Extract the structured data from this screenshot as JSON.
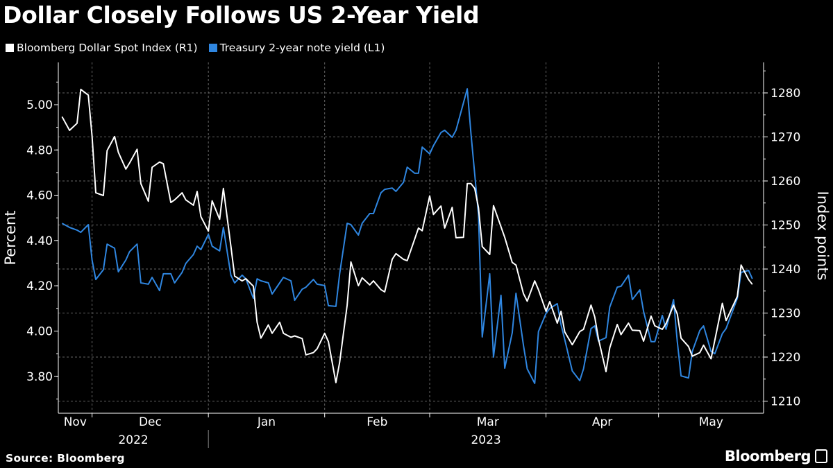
{
  "chart_data": {
    "type": "line",
    "title": "Dollar Closely Follows US 2-Year Yield",
    "source": "Source: Bloomberg",
    "brand": "Bloomberg",
    "y_left": {
      "label": "Percent",
      "range": [
        3.65,
        5.15
      ],
      "ticks": [
        "5.00",
        "4.80",
        "4.60",
        "4.40",
        "4.20",
        "4.00",
        "3.80"
      ],
      "tick_values": [
        5.0,
        4.8,
        4.6,
        4.4,
        4.2,
        4.0,
        3.8
      ]
    },
    "y_right": {
      "label": "Index points",
      "range": [
        1206,
        1287
      ],
      "ticks": [
        "1280",
        "1270",
        "1260",
        "1250",
        "1240",
        "1230",
        "1220",
        "1210"
      ],
      "tick_values": [
        1280,
        1270,
        1260,
        1250,
        1240,
        1230,
        1220,
        1210
      ]
    },
    "x": {
      "range": [
        "2022-11-22",
        "2023-05-29"
      ],
      "months": [
        {
          "label": "Nov",
          "start": "2022-11-22"
        },
        {
          "label": "Dec",
          "start": "2022-12-01"
        },
        {
          "label": "Jan",
          "start": "2023-01-01"
        },
        {
          "label": "Feb",
          "start": "2023-02-01"
        },
        {
          "label": "Mar",
          "start": "2023-03-01"
        },
        {
          "label": "Apr",
          "start": "2023-04-01"
        },
        {
          "label": "May",
          "start": "2023-05-01"
        }
      ],
      "years": [
        {
          "label": "2022",
          "start": "2022-11-22",
          "end": "2023-01-01"
        },
        {
          "label": "2023",
          "start": "2023-01-01",
          "end": "2023-05-29"
        }
      ]
    },
    "grid": true,
    "legend_position": "top-left",
    "series": [
      {
        "name": "Bloomberg Dollar Spot Index (R1)",
        "axis": "right",
        "color": "#ffffff",
        "points": [
          [
            "2022-11-23",
            1274.6
          ],
          [
            "2022-11-25",
            1271.5
          ],
          [
            "2022-11-27",
            1273.1
          ],
          [
            "2022-11-28",
            1280.8
          ],
          [
            "2022-11-30",
            1279.5
          ],
          [
            "2022-12-01",
            1270.2
          ],
          [
            "2022-12-02",
            1257.3
          ],
          [
            "2022-12-04",
            1256.7
          ],
          [
            "2022-12-05",
            1266.9
          ],
          [
            "2022-12-07",
            1270.1
          ],
          [
            "2022-12-08",
            1266.5
          ],
          [
            "2022-12-10",
            1262.7
          ],
          [
            "2022-12-11",
            1264.1
          ],
          [
            "2022-12-13",
            1267.2
          ],
          [
            "2022-12-14",
            1259.4
          ],
          [
            "2022-12-16",
            1255.4
          ],
          [
            "2022-12-17",
            1263.1
          ],
          [
            "2022-12-19",
            1264.3
          ],
          [
            "2022-12-20",
            1263.9
          ],
          [
            "2022-12-22",
            1255.1
          ],
          [
            "2022-12-23",
            1255.7
          ],
          [
            "2022-12-25",
            1257.3
          ],
          [
            "2022-12-26",
            1255.7
          ],
          [
            "2022-12-28",
            1254.5
          ],
          [
            "2022-12-29",
            1257.6
          ],
          [
            "2022-12-30",
            1251.9
          ],
          [
            "2023-01-01",
            1248.6
          ],
          [
            "2023-01-02",
            1255.5
          ],
          [
            "2023-01-04",
            1251.3
          ],
          [
            "2023-01-05",
            1258.3
          ],
          [
            "2023-01-07",
            1245.2
          ],
          [
            "2023-01-08",
            1238.4
          ],
          [
            "2023-01-10",
            1237.3
          ],
          [
            "2023-01-11",
            1237.8
          ],
          [
            "2023-01-13",
            1236.1
          ],
          [
            "2023-01-14",
            1227.9
          ],
          [
            "2023-01-15",
            1224.3
          ],
          [
            "2023-01-17",
            1227.3
          ],
          [
            "2023-01-18",
            1225.4
          ],
          [
            "2023-01-20",
            1227.9
          ],
          [
            "2023-01-21",
            1225.4
          ],
          [
            "2023-01-23",
            1224.5
          ],
          [
            "2023-01-24",
            1224.8
          ],
          [
            "2023-01-26",
            1224.2
          ],
          [
            "2023-01-27",
            1220.5
          ],
          [
            "2023-01-29",
            1221.0
          ],
          [
            "2023-01-30",
            1221.9
          ],
          [
            "2023-02-01",
            1225.4
          ],
          [
            "2023-02-02",
            1223.5
          ],
          [
            "2023-02-04",
            1214.2
          ],
          [
            "2023-02-05",
            1218.8
          ],
          [
            "2023-02-07",
            1231.8
          ],
          [
            "2023-02-08",
            1241.6
          ],
          [
            "2023-02-10",
            1236.2
          ],
          [
            "2023-02-11",
            1238.0
          ],
          [
            "2023-02-13",
            1236.4
          ],
          [
            "2023-02-14",
            1237.3
          ],
          [
            "2023-02-16",
            1235.3
          ],
          [
            "2023-02-17",
            1234.8
          ],
          [
            "2023-02-19",
            1242.2
          ],
          [
            "2023-02-20",
            1243.5
          ],
          [
            "2023-02-22",
            1242.2
          ],
          [
            "2023-02-23",
            1241.9
          ],
          [
            "2023-02-25",
            1246.8
          ],
          [
            "2023-02-26",
            1249.3
          ],
          [
            "2023-02-27",
            1248.7
          ],
          [
            "2023-03-01",
            1256.6
          ],
          [
            "2023-03-02",
            1252.4
          ],
          [
            "2023-03-04",
            1254.3
          ],
          [
            "2023-03-05",
            1249.3
          ],
          [
            "2023-03-07",
            1254.0
          ],
          [
            "2023-03-08",
            1247.1
          ],
          [
            "2023-03-10",
            1247.2
          ],
          [
            "2023-03-11",
            1259.4
          ],
          [
            "2023-03-12",
            1259.4
          ],
          [
            "2023-03-13",
            1258.3
          ],
          [
            "2023-03-14",
            1253.9
          ],
          [
            "2023-03-15",
            1245.1
          ],
          [
            "2023-03-17",
            1243.3
          ],
          [
            "2023-03-18",
            1254.4
          ],
          [
            "2023-03-21",
            1247.2
          ],
          [
            "2023-03-23",
            1241.5
          ],
          [
            "2023-03-24",
            1240.9
          ],
          [
            "2023-03-26",
            1234.4
          ],
          [
            "2023-03-27",
            1232.7
          ],
          [
            "2023-03-29",
            1237.3
          ],
          [
            "2023-03-30",
            1235.3
          ],
          [
            "2023-04-01",
            1230.4
          ],
          [
            "2023-04-02",
            1232.6
          ],
          [
            "2023-04-04",
            1227.7
          ],
          [
            "2023-04-05",
            1230.4
          ],
          [
            "2023-04-06",
            1225.7
          ],
          [
            "2023-04-08",
            1222.8
          ],
          [
            "2023-04-10",
            1225.8
          ],
          [
            "2023-04-11",
            1226.3
          ],
          [
            "2023-04-13",
            1231.8
          ],
          [
            "2023-04-14",
            1229.1
          ],
          [
            "2023-04-15",
            1224.1
          ],
          [
            "2023-04-17",
            1216.7
          ],
          [
            "2023-04-18",
            1222.1
          ],
          [
            "2023-04-20",
            1227.4
          ],
          [
            "2023-04-21",
            1225.1
          ],
          [
            "2023-04-23",
            1227.7
          ],
          [
            "2023-04-24",
            1226.1
          ],
          [
            "2023-04-26",
            1226.0
          ],
          [
            "2023-04-27",
            1223.6
          ],
          [
            "2023-04-29",
            1229.3
          ],
          [
            "2023-04-30",
            1227.1
          ],
          [
            "2023-05-02",
            1226.3
          ],
          [
            "2023-05-03",
            1227.6
          ],
          [
            "2023-05-05",
            1231.8
          ],
          [
            "2023-05-06",
            1229.8
          ],
          [
            "2023-05-07",
            1224.3
          ],
          [
            "2023-05-09",
            1222.4
          ],
          [
            "2023-05-10",
            1220.2
          ],
          [
            "2023-05-12",
            1221.0
          ],
          [
            "2023-05-13",
            1222.7
          ],
          [
            "2023-05-15",
            1219.6
          ],
          [
            "2023-05-18",
            1232.2
          ],
          [
            "2023-05-19",
            1228.3
          ],
          [
            "2023-05-22",
            1233.8
          ],
          [
            "2023-05-23",
            1240.9
          ],
          [
            "2023-05-25",
            1237.6
          ],
          [
            "2023-05-26",
            1236.5
          ]
        ]
      },
      {
        "name": "Treasury 2-year note yield (L1)",
        "axis": "left",
        "color": "#2f86e0",
        "points": [
          [
            "2022-11-23",
            4.476
          ],
          [
            "2022-11-25",
            4.458
          ],
          [
            "2022-11-27",
            4.446
          ],
          [
            "2022-11-28",
            4.436
          ],
          [
            "2022-11-30",
            4.47
          ],
          [
            "2022-12-01",
            4.314
          ],
          [
            "2022-12-02",
            4.228
          ],
          [
            "2022-12-04",
            4.271
          ],
          [
            "2022-12-05",
            4.384
          ],
          [
            "2022-12-07",
            4.366
          ],
          [
            "2022-12-08",
            4.262
          ],
          [
            "2022-12-10",
            4.314
          ],
          [
            "2022-12-11",
            4.351
          ],
          [
            "2022-12-13",
            4.384
          ],
          [
            "2022-12-14",
            4.213
          ],
          [
            "2022-12-16",
            4.207
          ],
          [
            "2022-12-17",
            4.237
          ],
          [
            "2022-12-19",
            4.179
          ],
          [
            "2022-12-20",
            4.253
          ],
          [
            "2022-12-22",
            4.253
          ],
          [
            "2022-12-23",
            4.213
          ],
          [
            "2022-12-25",
            4.259
          ],
          [
            "2022-12-26",
            4.299
          ],
          [
            "2022-12-28",
            4.338
          ],
          [
            "2022-12-29",
            4.375
          ],
          [
            "2022-12-30",
            4.36
          ],
          [
            "2023-01-01",
            4.427
          ],
          [
            "2023-01-02",
            4.375
          ],
          [
            "2023-01-04",
            4.354
          ],
          [
            "2023-01-05",
            4.458
          ],
          [
            "2023-01-07",
            4.247
          ],
          [
            "2023-01-08",
            4.213
          ],
          [
            "2023-01-10",
            4.247
          ],
          [
            "2023-01-11",
            4.231
          ],
          [
            "2023-01-13",
            4.145
          ],
          [
            "2023-01-14",
            4.231
          ],
          [
            "2023-01-15",
            4.222
          ],
          [
            "2023-01-17",
            4.213
          ],
          [
            "2023-01-18",
            4.164
          ],
          [
            "2023-01-20",
            4.213
          ],
          [
            "2023-01-21",
            4.237
          ],
          [
            "2023-01-23",
            4.222
          ],
          [
            "2023-01-24",
            4.136
          ],
          [
            "2023-01-26",
            4.185
          ],
          [
            "2023-01-27",
            4.194
          ],
          [
            "2023-01-29",
            4.228
          ],
          [
            "2023-01-30",
            4.207
          ],
          [
            "2023-02-01",
            4.201
          ],
          [
            "2023-02-02",
            4.112
          ],
          [
            "2023-02-04",
            4.109
          ],
          [
            "2023-02-05",
            4.253
          ],
          [
            "2023-02-07",
            4.476
          ],
          [
            "2023-02-08",
            4.47
          ],
          [
            "2023-02-10",
            4.424
          ],
          [
            "2023-02-11",
            4.476
          ],
          [
            "2023-02-13",
            4.519
          ],
          [
            "2023-02-14",
            4.519
          ],
          [
            "2023-02-16",
            4.611
          ],
          [
            "2023-02-17",
            4.626
          ],
          [
            "2023-02-19",
            4.632
          ],
          [
            "2023-02-20",
            4.617
          ],
          [
            "2023-02-22",
            4.657
          ],
          [
            "2023-02-23",
            4.724
          ],
          [
            "2023-02-25",
            4.697
          ],
          [
            "2023-02-26",
            4.697
          ],
          [
            "2023-02-27",
            4.813
          ],
          [
            "2023-03-01",
            4.783
          ],
          [
            "2023-03-02",
            4.819
          ],
          [
            "2023-03-04",
            4.877
          ],
          [
            "2023-03-05",
            4.887
          ],
          [
            "2023-03-07",
            4.856
          ],
          [
            "2023-03-08",
            4.887
          ],
          [
            "2023-03-10",
            5.009
          ],
          [
            "2023-03-11",
            5.07
          ],
          [
            "2023-03-12",
            4.871
          ],
          [
            "2023-03-14",
            4.513
          ],
          [
            "2023-03-15",
            3.974
          ],
          [
            "2023-03-17",
            4.253
          ],
          [
            "2023-03-18",
            3.885
          ],
          [
            "2023-03-20",
            4.158
          ],
          [
            "2023-03-21",
            3.836
          ],
          [
            "2023-03-23",
            3.992
          ],
          [
            "2023-03-24",
            4.167
          ],
          [
            "2023-03-26",
            3.937
          ],
          [
            "2023-03-27",
            3.833
          ],
          [
            "2023-03-29",
            3.769
          ],
          [
            "2023-03-30",
            3.998
          ],
          [
            "2023-04-01",
            4.078
          ],
          [
            "2023-04-02",
            4.1
          ],
          [
            "2023-04-04",
            4.121
          ],
          [
            "2023-04-05",
            4.029
          ],
          [
            "2023-04-06",
            3.962
          ],
          [
            "2023-04-08",
            3.824
          ],
          [
            "2023-04-10",
            3.781
          ],
          [
            "2023-04-11",
            3.833
          ],
          [
            "2023-04-13",
            4.011
          ],
          [
            "2023-04-14",
            4.023
          ],
          [
            "2023-04-15",
            3.956
          ],
          [
            "2023-04-17",
            3.971
          ],
          [
            "2023-04-18",
            4.106
          ],
          [
            "2023-04-20",
            4.194
          ],
          [
            "2023-04-21",
            4.198
          ],
          [
            "2023-04-23",
            4.247
          ],
          [
            "2023-04-24",
            4.139
          ],
          [
            "2023-04-26",
            4.182
          ],
          [
            "2023-04-27",
            4.087
          ],
          [
            "2023-04-29",
            3.953
          ],
          [
            "2023-04-30",
            3.953
          ],
          [
            "2023-05-02",
            4.069
          ],
          [
            "2023-05-03",
            4.008
          ],
          [
            "2023-05-05",
            4.139
          ],
          [
            "2023-05-06",
            3.953
          ],
          [
            "2023-05-07",
            3.802
          ],
          [
            "2023-05-09",
            3.793
          ],
          [
            "2023-05-10",
            3.91
          ],
          [
            "2023-05-12",
            4.002
          ],
          [
            "2023-05-13",
            4.023
          ],
          [
            "2023-05-15",
            3.91
          ],
          [
            "2023-05-16",
            3.9
          ],
          [
            "2023-05-18",
            3.989
          ],
          [
            "2023-05-19",
            4.011
          ],
          [
            "2023-05-22",
            4.145
          ],
          [
            "2023-05-23",
            4.259
          ],
          [
            "2023-05-25",
            4.268
          ],
          [
            "2023-05-26",
            4.231
          ]
        ]
      }
    ]
  }
}
